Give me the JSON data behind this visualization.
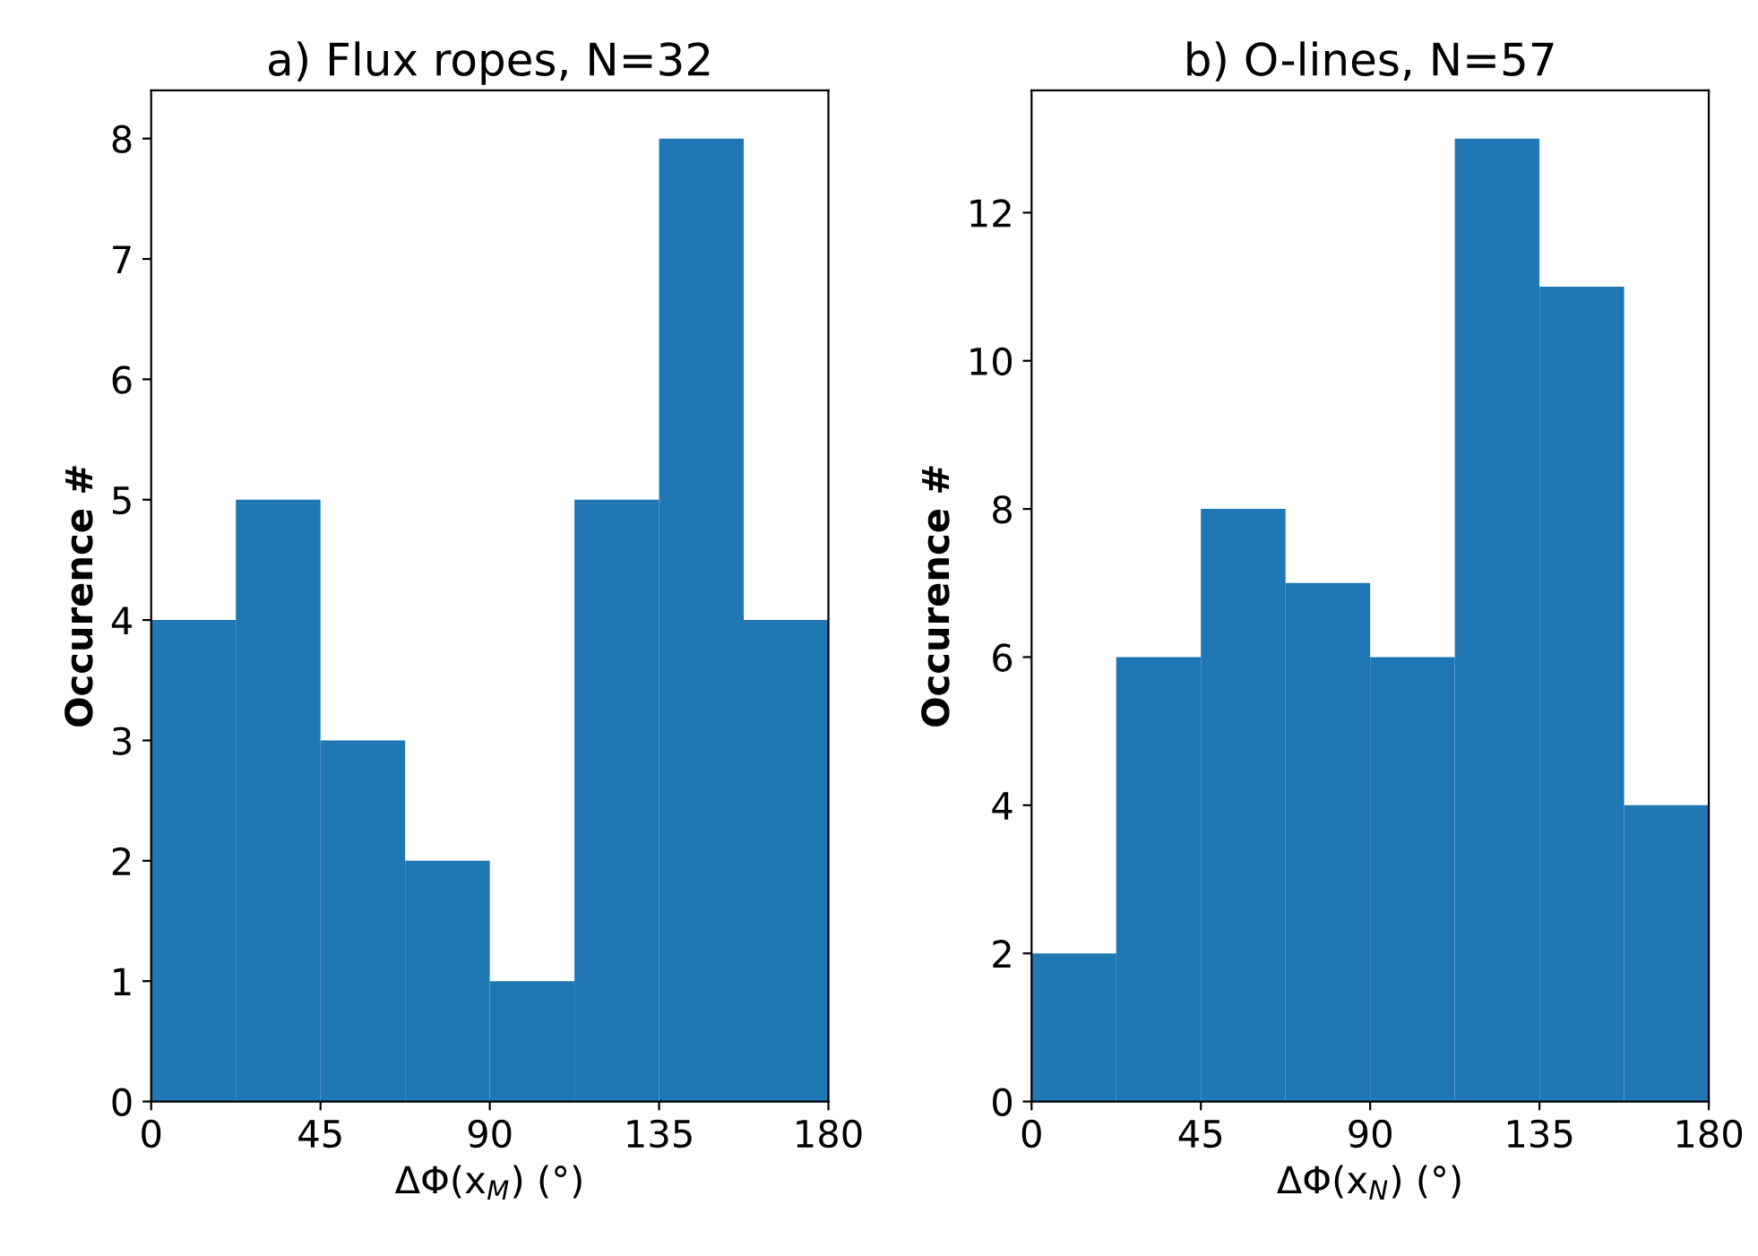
{
  "chart_data": [
    {
      "type": "histogram",
      "title": "a) Flux ropes, N=32",
      "xlabel": "ΔΦ(x$_{M}$) (°)",
      "ylabel": "Occurence #",
      "color": "#1f77b4",
      "bins": [
        0,
        22.5,
        45,
        67.5,
        90,
        112.5,
        135,
        157.5,
        180
      ],
      "values": [
        4,
        5,
        3,
        2,
        1,
        5,
        8,
        4
      ],
      "xlim": [
        0,
        180
      ],
      "xticks": [
        0,
        45,
        90,
        135,
        180
      ],
      "ylim": [
        0,
        8.4
      ],
      "yticks": [
        0,
        1,
        2,
        3,
        4,
        5,
        6,
        7,
        8
      ]
    },
    {
      "type": "histogram",
      "title": "b) O-lines, N=57",
      "xlabel": "ΔΦ(x$_{N}$) (°)",
      "ylabel": "Occurence #",
      "color": "#1f77b4",
      "bins": [
        0,
        22.5,
        45,
        67.5,
        90,
        112.5,
        135,
        157.5,
        180
      ],
      "values": [
        2,
        6,
        8,
        7,
        6,
        13,
        11,
        4
      ],
      "xlim": [
        0,
        180
      ],
      "xticks": [
        0,
        45,
        90,
        135,
        180
      ],
      "ylim": [
        0,
        13.65
      ],
      "yticks": [
        0,
        2,
        4,
        6,
        8,
        10,
        12
      ]
    }
  ]
}
